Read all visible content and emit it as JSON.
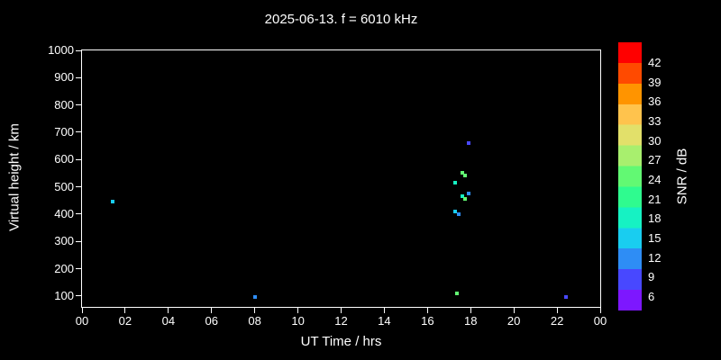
{
  "header": {
    "title": "2025-06-13. f = 6010 kHz"
  },
  "chart_data": {
    "type": "scatter",
    "title": "2025-06-13. f = 6010 kHz",
    "xlabel": "UT Time / hrs",
    "ylabel": "Virtual height / km",
    "xlim": [
      0,
      24
    ],
    "ylim": [
      60,
      1000
    ],
    "x_tick_labels": [
      "00",
      "02",
      "04",
      "06",
      "08",
      "10",
      "12",
      "14",
      "16",
      "18",
      "20",
      "22",
      "00"
    ],
    "x_tick_values": [
      0,
      2,
      4,
      6,
      8,
      10,
      12,
      14,
      16,
      18,
      20,
      22,
      24
    ],
    "y_tick_values": [
      100,
      200,
      300,
      400,
      500,
      600,
      700,
      800,
      900,
      1000
    ],
    "grid": false,
    "background_color": "#000000",
    "axis_color": "#ffffff",
    "text_color": "#ffffff",
    "points": [
      {
        "time_hrs": 1.4,
        "height_km": 445,
        "snr_db": 15,
        "color": "#19cdf0"
      },
      {
        "time_hrs": 8.0,
        "height_km": 95,
        "snr_db": 12,
        "color": "#2e8df5"
      },
      {
        "time_hrs": 17.35,
        "height_km": 110,
        "snr_db": 24,
        "color": "#62f973"
      },
      {
        "time_hrs": 17.3,
        "height_km": 515,
        "snr_db": 18,
        "color": "#16f2c3"
      },
      {
        "time_hrs": 17.3,
        "height_km": 410,
        "snr_db": 15,
        "color": "#19cdf0"
      },
      {
        "time_hrs": 17.45,
        "height_km": 400,
        "snr_db": 12,
        "color": "#2e8df5"
      },
      {
        "time_hrs": 17.6,
        "height_km": 550,
        "snr_db": 24,
        "color": "#62f973"
      },
      {
        "time_hrs": 17.75,
        "height_km": 540,
        "snr_db": 24,
        "color": "#62f973"
      },
      {
        "time_hrs": 17.6,
        "height_km": 465,
        "snr_db": 18,
        "color": "#16f2c3"
      },
      {
        "time_hrs": 17.75,
        "height_km": 455,
        "snr_db": 24,
        "color": "#62f973"
      },
      {
        "time_hrs": 17.9,
        "height_km": 475,
        "snr_db": 12,
        "color": "#2e8df5"
      },
      {
        "time_hrs": 17.9,
        "height_km": 660,
        "snr_db": 9,
        "color": "#4848ff"
      },
      {
        "time_hrs": 22.4,
        "height_km": 95,
        "snr_db": 9,
        "color": "#4848ff"
      }
    ],
    "colorbar": {
      "label": "SNR / dB",
      "tick_labels": [
        42,
        39,
        36,
        33,
        30,
        27,
        24,
        21,
        18,
        15,
        12,
        9,
        6
      ],
      "colors_top_to_bottom": [
        "#ff0000",
        "#ff4a00",
        "#ff9400",
        "#ffc34d",
        "#e2e06a",
        "#a8ef6e",
        "#62f973",
        "#2ffb8f",
        "#16f2c3",
        "#19cdf0",
        "#2e8df5",
        "#4848ff",
        "#7d17ff"
      ]
    }
  }
}
